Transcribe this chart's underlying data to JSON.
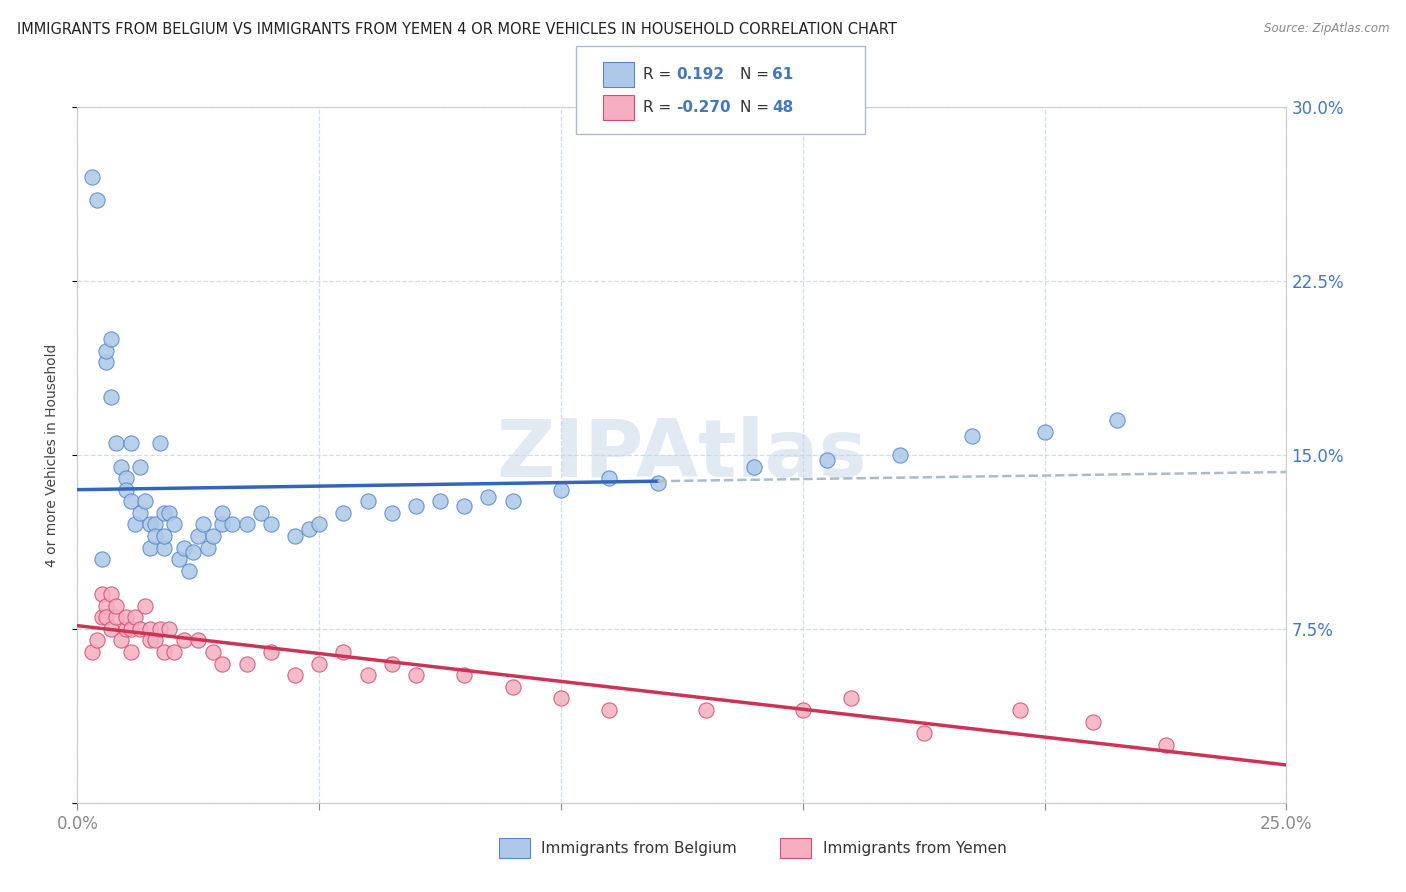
{
  "title": "IMMIGRANTS FROM BELGIUM VS IMMIGRANTS FROM YEMEN 4 OR MORE VEHICLES IN HOUSEHOLD CORRELATION CHART",
  "source": "Source: ZipAtlas.com",
  "ylabel": "4 or more Vehicles in Household",
  "xlim": [
    0.0,
    0.25
  ],
  "ylim": [
    0.0,
    0.3
  ],
  "xticks": [
    0.0,
    0.05,
    0.1,
    0.15,
    0.2,
    0.25
  ],
  "yticks": [
    0.0,
    0.075,
    0.15,
    0.225,
    0.3
  ],
  "xticklabels": [
    "0.0%",
    "",
    "",
    "",
    "",
    "25.0%"
  ],
  "yticklabels": [
    "",
    "7.5%",
    "15.0%",
    "22.5%",
    "30.0%"
  ],
  "belgium_R": 0.192,
  "belgium_N": 61,
  "yemen_R": -0.27,
  "yemen_N": 48,
  "belgium_color": "#adc8e8",
  "yemen_color": "#f5afc0",
  "belgium_edge_color": "#5588cc",
  "yemen_edge_color": "#d05070",
  "belgium_line_color": "#3366bb",
  "yemen_line_color": "#cc3355",
  "dash_color": "#aabbcc",
  "watermark_color": "#c5d5e8",
  "belgium_scatter_x": [
    0.003,
    0.004,
    0.005,
    0.006,
    0.006,
    0.007,
    0.007,
    0.008,
    0.009,
    0.01,
    0.01,
    0.011,
    0.011,
    0.012,
    0.013,
    0.013,
    0.014,
    0.015,
    0.015,
    0.016,
    0.016,
    0.017,
    0.018,
    0.018,
    0.018,
    0.019,
    0.02,
    0.021,
    0.022,
    0.023,
    0.024,
    0.025,
    0.026,
    0.027,
    0.028,
    0.03,
    0.03,
    0.032,
    0.035,
    0.038,
    0.04,
    0.045,
    0.048,
    0.05,
    0.055,
    0.06,
    0.065,
    0.07,
    0.075,
    0.08,
    0.085,
    0.09,
    0.1,
    0.11,
    0.12,
    0.14,
    0.155,
    0.17,
    0.185,
    0.2,
    0.215
  ],
  "belgium_scatter_y": [
    0.27,
    0.26,
    0.105,
    0.19,
    0.195,
    0.2,
    0.175,
    0.155,
    0.145,
    0.14,
    0.135,
    0.155,
    0.13,
    0.12,
    0.145,
    0.125,
    0.13,
    0.12,
    0.11,
    0.12,
    0.115,
    0.155,
    0.125,
    0.11,
    0.115,
    0.125,
    0.12,
    0.105,
    0.11,
    0.1,
    0.108,
    0.115,
    0.12,
    0.11,
    0.115,
    0.12,
    0.125,
    0.12,
    0.12,
    0.125,
    0.12,
    0.115,
    0.118,
    0.12,
    0.125,
    0.13,
    0.125,
    0.128,
    0.13,
    0.128,
    0.132,
    0.13,
    0.135,
    0.14,
    0.138,
    0.145,
    0.148,
    0.15,
    0.158,
    0.16,
    0.165
  ],
  "yemen_scatter_x": [
    0.003,
    0.004,
    0.005,
    0.005,
    0.006,
    0.006,
    0.007,
    0.007,
    0.008,
    0.008,
    0.009,
    0.01,
    0.01,
    0.011,
    0.011,
    0.012,
    0.013,
    0.014,
    0.015,
    0.015,
    0.016,
    0.017,
    0.018,
    0.019,
    0.02,
    0.022,
    0.025,
    0.028,
    0.03,
    0.035,
    0.04,
    0.045,
    0.05,
    0.055,
    0.06,
    0.065,
    0.07,
    0.08,
    0.09,
    0.1,
    0.11,
    0.13,
    0.15,
    0.16,
    0.175,
    0.195,
    0.21,
    0.225
  ],
  "yemen_scatter_y": [
    0.065,
    0.07,
    0.08,
    0.09,
    0.085,
    0.08,
    0.075,
    0.09,
    0.08,
    0.085,
    0.07,
    0.075,
    0.08,
    0.065,
    0.075,
    0.08,
    0.075,
    0.085,
    0.075,
    0.07,
    0.07,
    0.075,
    0.065,
    0.075,
    0.065,
    0.07,
    0.07,
    0.065,
    0.06,
    0.06,
    0.065,
    0.055,
    0.06,
    0.065,
    0.055,
    0.06,
    0.055,
    0.055,
    0.05,
    0.045,
    0.04,
    0.04,
    0.04,
    0.045,
    0.03,
    0.04,
    0.035,
    0.025
  ]
}
